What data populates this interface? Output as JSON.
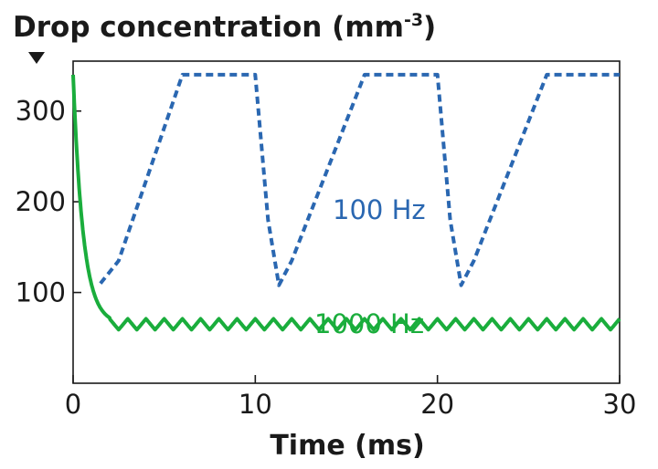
{
  "chart_data": {
    "type": "line",
    "title": "Drop concentration",
    "ylabel_unit_base": "(mm",
    "ylabel_unit_sup": "-3",
    "ylabel_unit_close": ")",
    "xlabel": "Time (ms)",
    "xlim": [
      0,
      30
    ],
    "ylim": [
      0,
      355
    ],
    "grid": false,
    "xticks": [
      "0",
      "10",
      "20",
      "30"
    ],
    "yticks": [
      "100",
      "200",
      "300"
    ],
    "series": [
      {
        "name": "100 Hz",
        "color": "#2a67b1",
        "style": "dashed",
        "x": [
          1.5,
          2.5,
          6.0,
          10.0,
          10.7,
          11.3,
          12.0,
          16.0,
          20.0,
          20.7,
          21.3,
          22.0,
          26.0,
          30.0
        ],
        "y": [
          110,
          135,
          340,
          340,
          180,
          108,
          135,
          340,
          340,
          180,
          108,
          135,
          340,
          340
        ]
      },
      {
        "name": "1000 Hz",
        "color": "#1aad3c",
        "style": "solid",
        "decay": {
          "start": 340,
          "baseline": 65,
          "tau_ms": 0.55,
          "until_ms": 2.0
        },
        "ripple": {
          "mean": 65,
          "amplitude": 6,
          "period_ms": 1.0,
          "from_ms": 2.0
        }
      }
    ]
  }
}
